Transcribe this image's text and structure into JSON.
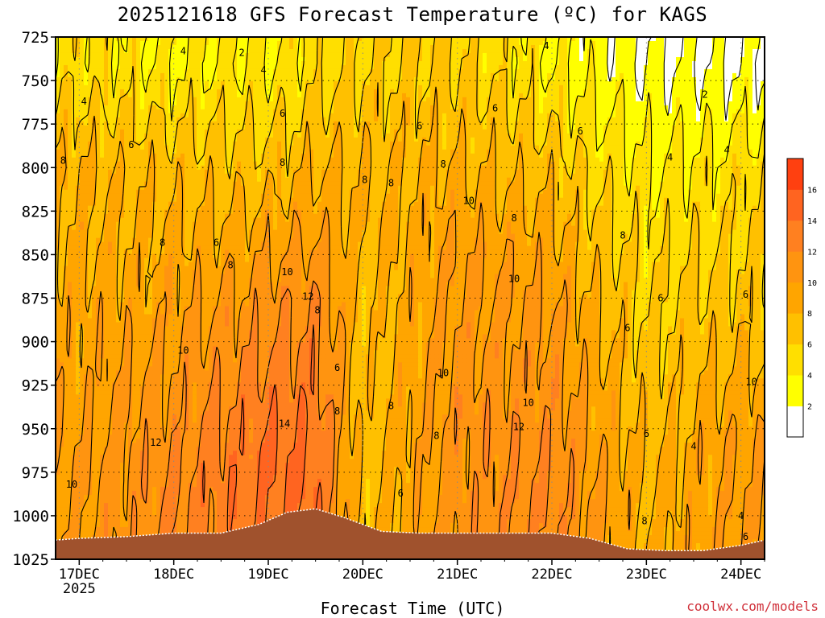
{
  "chart_data": {
    "type": "heatmap",
    "title": "2025121618 GFS Forecast Temperature (ºC) for KAGS",
    "xlabel": "Forecast Time (UTC)",
    "ylabel": "",
    "credit": "coolwx.com/models",
    "y_axis": {
      "ticks": [
        "725",
        "750",
        "775",
        "800",
        "825",
        "850",
        "875",
        "900",
        "925",
        "950",
        "975",
        "1000",
        "1025"
      ],
      "values": [
        725,
        750,
        775,
        800,
        825,
        850,
        875,
        900,
        925,
        950,
        975,
        1000,
        1025
      ],
      "range": [
        725,
        1025
      ],
      "inverted": true,
      "unit": "hPa"
    },
    "x_axis": {
      "ticks": [
        "17DEC",
        "18DEC",
        "19DEC",
        "20DEC",
        "21DEC",
        "22DEC",
        "23DEC",
        "24DEC"
      ],
      "year_label": "2025",
      "range_days": [
        16.75,
        24.25
      ]
    },
    "grid": true,
    "colorbar": {
      "ticks": [
        "2",
        "4",
        "6",
        "8",
        "10",
        "12",
        "14",
        "16"
      ],
      "levels": [
        0,
        2,
        4,
        6,
        8,
        10,
        12,
        14,
        16,
        18
      ],
      "colors": [
        "#ffffff",
        "#ffff00",
        "#ffdf00",
        "#ffc000",
        "#ffa500",
        "#ff9410",
        "#ff8020",
        "#ff6420",
        "#ff4010"
      ]
    },
    "series": [
      {
        "x": 17.0,
        "temps": [
          {
            "p": 740,
            "t": 5
          },
          {
            "p": 800,
            "t": 8
          },
          {
            "p": 900,
            "t": 9
          },
          {
            "p": 980,
            "t": 10
          }
        ]
      },
      {
        "x": 18.0,
        "temps": [
          {
            "p": 740,
            "t": 4
          },
          {
            "p": 800,
            "t": 7
          },
          {
            "p": 900,
            "t": 10
          },
          {
            "p": 980,
            "t": 12
          }
        ]
      },
      {
        "x": 19.0,
        "temps": [
          {
            "p": 740,
            "t": 4
          },
          {
            "p": 800,
            "t": 7
          },
          {
            "p": 875,
            "t": 11
          },
          {
            "p": 960,
            "t": 14
          }
        ]
      },
      {
        "x": 19.5,
        "temps": [
          {
            "p": 740,
            "t": 5
          },
          {
            "p": 800,
            "t": 8
          },
          {
            "p": 875,
            "t": 12
          },
          {
            "p": 950,
            "t": 14
          }
        ]
      },
      {
        "x": 20.0,
        "temps": [
          {
            "p": 740,
            "t": 6
          },
          {
            "p": 800,
            "t": 8
          },
          {
            "p": 900,
            "t": 7
          },
          {
            "p": 960,
            "t": 7
          }
        ]
      },
      {
        "x": 21.0,
        "temps": [
          {
            "p": 740,
            "t": 6
          },
          {
            "p": 800,
            "t": 8
          },
          {
            "p": 850,
            "t": 10
          },
          {
            "p": 950,
            "t": 11
          }
        ]
      },
      {
        "x": 22.0,
        "temps": [
          {
            "p": 740,
            "t": 4
          },
          {
            "p": 800,
            "t": 7
          },
          {
            "p": 880,
            "t": 10
          },
          {
            "p": 970,
            "t": 12
          }
        ]
      },
      {
        "x": 23.0,
        "temps": [
          {
            "p": 740,
            "t": 2
          },
          {
            "p": 800,
            "t": 4
          },
          {
            "p": 880,
            "t": 6
          },
          {
            "p": 990,
            "t": 8
          }
        ]
      },
      {
        "x": 24.0,
        "temps": [
          {
            "p": 740,
            "t": 2
          },
          {
            "p": 800,
            "t": 5
          },
          {
            "p": 880,
            "t": 7
          },
          {
            "p": 960,
            "t": 10
          }
        ]
      }
    ],
    "contour_labels": [
      {
        "x": 16.83,
        "p": 796,
        "text": "8"
      },
      {
        "x": 16.92,
        "p": 982,
        "text": "10"
      },
      {
        "x": 17.05,
        "p": 762,
        "text": "4"
      },
      {
        "x": 17.55,
        "p": 787,
        "text": "6"
      },
      {
        "x": 17.88,
        "p": 843,
        "text": "8"
      },
      {
        "x": 17.81,
        "p": 958,
        "text": "12"
      },
      {
        "x": 18.1,
        "p": 905,
        "text": "10"
      },
      {
        "x": 18.1,
        "p": 733,
        "text": "4"
      },
      {
        "x": 18.45,
        "p": 843,
        "text": "6"
      },
      {
        "x": 18.6,
        "p": 856,
        "text": "8"
      },
      {
        "x": 18.72,
        "p": 734,
        "text": "2"
      },
      {
        "x": 19.17,
        "p": 947,
        "text": "14"
      },
      {
        "x": 18.95,
        "p": 744,
        "text": "4"
      },
      {
        "x": 19.15,
        "p": 769,
        "text": "6"
      },
      {
        "x": 19.15,
        "p": 797,
        "text": "8"
      },
      {
        "x": 19.2,
        "p": 860,
        "text": "10"
      },
      {
        "x": 19.42,
        "p": 874,
        "text": "12"
      },
      {
        "x": 19.52,
        "p": 882,
        "text": "8"
      },
      {
        "x": 19.73,
        "p": 915,
        "text": "6"
      },
      {
        "x": 19.73,
        "p": 940,
        "text": "8"
      },
      {
        "x": 20.02,
        "p": 807,
        "text": "8"
      },
      {
        "x": 20.3,
        "p": 809,
        "text": "8"
      },
      {
        "x": 20.3,
        "p": 937,
        "text": "8"
      },
      {
        "x": 20.4,
        "p": 987,
        "text": "6"
      },
      {
        "x": 20.6,
        "p": 776,
        "text": "6"
      },
      {
        "x": 20.78,
        "p": 954,
        "text": "8"
      },
      {
        "x": 20.85,
        "p": 798,
        "text": "8"
      },
      {
        "x": 20.85,
        "p": 918,
        "text": "10"
      },
      {
        "x": 21.12,
        "p": 819,
        "text": "10"
      },
      {
        "x": 21.4,
        "p": 766,
        "text": "6"
      },
      {
        "x": 21.6,
        "p": 829,
        "text": "8"
      },
      {
        "x": 21.6,
        "p": 864,
        "text": "10"
      },
      {
        "x": 21.65,
        "p": 949,
        "text": "12"
      },
      {
        "x": 21.75,
        "p": 935,
        "text": "10"
      },
      {
        "x": 21.94,
        "p": 730,
        "text": "4"
      },
      {
        "x": 22.3,
        "p": 779,
        "text": "6"
      },
      {
        "x": 22.75,
        "p": 839,
        "text": "8"
      },
      {
        "x": 22.8,
        "p": 892,
        "text": "6"
      },
      {
        "x": 23.0,
        "p": 953,
        "text": "6"
      },
      {
        "x": 22.98,
        "p": 1003,
        "text": "8"
      },
      {
        "x": 23.15,
        "p": 875,
        "text": "6"
      },
      {
        "x": 23.25,
        "p": 794,
        "text": "4"
      },
      {
        "x": 23.5,
        "p": 960,
        "text": "4"
      },
      {
        "x": 23.62,
        "p": 758,
        "text": "2"
      },
      {
        "x": 23.85,
        "p": 790,
        "text": "4"
      },
      {
        "x": 24.0,
        "p": 1000,
        "text": "4"
      },
      {
        "x": 24.05,
        "p": 1012,
        "text": "6"
      },
      {
        "x": 24.05,
        "p": 873,
        "text": "6"
      },
      {
        "x": 24.11,
        "p": 923,
        "text": "10"
      }
    ]
  }
}
